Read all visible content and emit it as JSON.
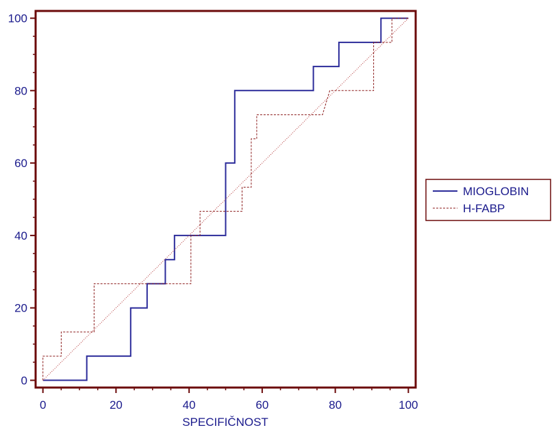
{
  "chart_data": {
    "type": "line",
    "xlabel": "SPECIFIČNOST",
    "ylabel": "",
    "xlim": [
      -2,
      102
    ],
    "ylim": [
      -2,
      102
    ],
    "x_ticks": [
      0,
      20,
      40,
      60,
      80,
      100
    ],
    "y_ticks": [
      0,
      20,
      40,
      60,
      80,
      100
    ],
    "legend_position": "right",
    "colors": {
      "frame": "#6b0a0a",
      "text": "#1a1a8c",
      "mioglobin": "#2b2b9a",
      "hfabp": "#8b1a1a",
      "diagonal": "#b03030"
    },
    "series": [
      {
        "name": "MIOGLOBIN",
        "style": "solid",
        "x": [
          0,
          12,
          12,
          24,
          24,
          28.5,
          28.5,
          33.5,
          33.5,
          36,
          36,
          50,
          50,
          52.5,
          52.5,
          74,
          74,
          81,
          81,
          92.5,
          92.5,
          100
        ],
        "y": [
          0,
          0,
          6.67,
          6.67,
          20,
          20,
          26.67,
          26.67,
          33.33,
          33.33,
          40,
          40,
          60,
          60,
          80,
          80,
          86.67,
          86.67,
          93.33,
          93.33,
          100,
          100
        ]
      },
      {
        "name": "H-FABP",
        "style": "dashed",
        "x": [
          0,
          0,
          5,
          5,
          14,
          14,
          40.5,
          40.5,
          43,
          43,
          54.5,
          54.5,
          57,
          57,
          58.5,
          58.5,
          60,
          60,
          76.5,
          78.5,
          90.5,
          90.5,
          93.5,
          95.5,
          95.5,
          100
        ],
        "y": [
          0,
          6.67,
          6.67,
          13.33,
          13.33,
          26.67,
          26.67,
          40,
          40,
          46.67,
          46.67,
          53.33,
          53.33,
          66.67,
          66.67,
          73.33,
          73.33,
          73.33,
          73.33,
          80,
          80,
          93.33,
          93.33,
          93.33,
          100,
          100
        ]
      },
      {
        "name": "",
        "style": "diagonal",
        "x": [
          0,
          100
        ],
        "y": [
          0,
          100
        ]
      }
    ]
  }
}
